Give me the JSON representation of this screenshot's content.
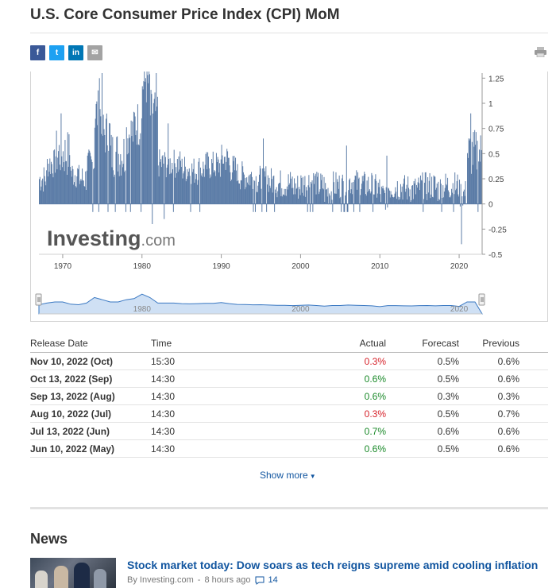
{
  "page": {
    "title": "U.S. Core Consumer Price Index (CPI) MoM"
  },
  "share": [
    {
      "label": "f",
      "icon": "facebook-icon"
    },
    {
      "label": "t",
      "icon": "twitter-icon"
    },
    {
      "label": "in",
      "icon": "linkedin-icon"
    },
    {
      "label": "✉",
      "icon": "email-icon"
    }
  ],
  "chart_data": {
    "type": "bar",
    "watermark": "Investing.com",
    "x_ticks": [
      "1970",
      "1980",
      "1990",
      "2000",
      "2010",
      "2020"
    ],
    "y_ticks": [
      "1.25",
      "1",
      "0.75",
      "0.5",
      "0.25",
      "0",
      "-0.25",
      "-0.5"
    ],
    "xlim": [
      1967,
      2022.9
    ],
    "ylim": [
      -0.5,
      1.3
    ],
    "navigator_ticks": [
      "1980",
      "2000",
      "2020"
    ],
    "color": "#5a7ba6",
    "series": [
      {
        "values_approx": [
          {
            "x": 1967,
            "y": 0.25
          },
          {
            "x": 1968,
            "y": 0.4
          },
          {
            "x": 1969,
            "y": 0.5
          },
          {
            "x": 1970,
            "y": 0.5
          },
          {
            "x": 1971,
            "y": 0.3
          },
          {
            "x": 1972,
            "y": 0.25
          },
          {
            "x": 1973,
            "y": 0.4
          },
          {
            "x": 1974,
            "y": 0.9
          },
          {
            "x": 1975,
            "y": 0.7
          },
          {
            "x": 1976,
            "y": 0.5
          },
          {
            "x": 1977,
            "y": 0.5
          },
          {
            "x": 1978,
            "y": 0.7
          },
          {
            "x": 1979,
            "y": 0.8
          },
          {
            "x": 1980,
            "y": 1.2
          },
          {
            "x": 1981,
            "y": 0.9
          },
          {
            "x": 1982,
            "y": 0.4
          },
          {
            "x": 1983,
            "y": 0.4
          },
          {
            "x": 1984,
            "y": 0.4
          },
          {
            "x": 1985,
            "y": 0.35
          },
          {
            "x": 1986,
            "y": 0.33
          },
          {
            "x": 1987,
            "y": 0.35
          },
          {
            "x": 1988,
            "y": 0.38
          },
          {
            "x": 1989,
            "y": 0.38
          },
          {
            "x": 1990,
            "y": 0.45
          },
          {
            "x": 1991,
            "y": 0.35
          },
          {
            "x": 1992,
            "y": 0.28
          },
          {
            "x": 1993,
            "y": 0.27
          },
          {
            "x": 1994,
            "y": 0.24
          },
          {
            "x": 1995,
            "y": 0.25
          },
          {
            "x": 1996,
            "y": 0.22
          },
          {
            "x": 1997,
            "y": 0.2
          },
          {
            "x": 1998,
            "y": 0.2
          },
          {
            "x": 1999,
            "y": 0.17
          },
          {
            "x": 2000,
            "y": 0.2
          },
          {
            "x": 2001,
            "y": 0.22
          },
          {
            "x": 2002,
            "y": 0.18
          },
          {
            "x": 2003,
            "y": 0.12
          },
          {
            "x": 2004,
            "y": 0.18
          },
          {
            "x": 2005,
            "y": 0.18
          },
          {
            "x": 2006,
            "y": 0.22
          },
          {
            "x": 2007,
            "y": 0.2
          },
          {
            "x": 2008,
            "y": 0.18
          },
          {
            "x": 2009,
            "y": 0.15
          },
          {
            "x": 2010,
            "y": 0.08
          },
          {
            "x": 2011,
            "y": 0.17
          },
          {
            "x": 2012,
            "y": 0.17
          },
          {
            "x": 2013,
            "y": 0.15
          },
          {
            "x": 2014,
            "y": 0.14
          },
          {
            "x": 2015,
            "y": 0.17
          },
          {
            "x": 2016,
            "y": 0.18
          },
          {
            "x": 2017,
            "y": 0.15
          },
          {
            "x": 2018,
            "y": 0.18
          },
          {
            "x": 2019,
            "y": 0.18
          },
          {
            "x": 2020,
            "y": 0.1
          },
          {
            "x": 2021,
            "y": 0.5
          },
          {
            "x": 2022,
            "y": 0.5
          }
        ]
      }
    ]
  },
  "history": {
    "headers": {
      "date": "Release Date",
      "time": "Time",
      "actual": "Actual",
      "forecast": "Forecast",
      "previous": "Previous"
    },
    "rows": [
      {
        "date": "Nov 10, 2022 (Oct)",
        "time": "15:30",
        "actual": "0.3%",
        "actual_color": "red",
        "forecast": "0.5%",
        "previous": "0.6%"
      },
      {
        "date": "Oct 13, 2022 (Sep)",
        "time": "14:30",
        "actual": "0.6%",
        "actual_color": "green",
        "forecast": "0.5%",
        "previous": "0.6%"
      },
      {
        "date": "Sep 13, 2022 (Aug)",
        "time": "14:30",
        "actual": "0.6%",
        "actual_color": "green",
        "forecast": "0.3%",
        "previous": "0.3%"
      },
      {
        "date": "Aug 10, 2022 (Jul)",
        "time": "14:30",
        "actual": "0.3%",
        "actual_color": "red",
        "forecast": "0.5%",
        "previous": "0.7%"
      },
      {
        "date": "Jul 13, 2022 (Jun)",
        "time": "14:30",
        "actual": "0.7%",
        "actual_color": "green",
        "forecast": "0.6%",
        "previous": "0.6%"
      },
      {
        "date": "Jun 10, 2022 (May)",
        "time": "14:30",
        "actual": "0.6%",
        "actual_color": "green",
        "forecast": "0.5%",
        "previous": "0.6%"
      }
    ],
    "show_more": "Show more"
  },
  "news": {
    "section_title": "News",
    "items": [
      {
        "headline": "Stock market today: Dow soars as tech reigns supreme amid cooling inflation",
        "source": "By Investing.com",
        "age": "8 hours ago",
        "comments": "14"
      }
    ]
  },
  "colors": {
    "link": "#1256a0",
    "positive": "#1b8a2a",
    "negative": "#d6222a",
    "bar": "#5a7ba6"
  }
}
